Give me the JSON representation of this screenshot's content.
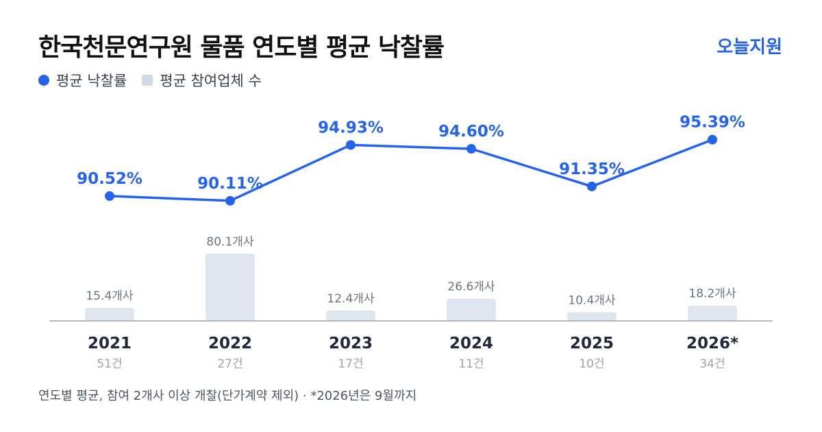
{
  "title": "한국천문연구원 물품 연도별 평균 낙찰률",
  "brand": "오늘지원",
  "legend": {
    "rate_label": "평균 낙찰률",
    "count_label": "평균 참여업체 수"
  },
  "footnote": "연도별 평균, 참여 2개사 이상 개찰(단가계약 제외) · *2026년은 9월까지",
  "colors": {
    "line": "#2563eb",
    "bar": "#dfe5ee",
    "axis": "#9ca3af",
    "bar_label": "#6b7280",
    "year": "#1f2937",
    "sub": "#9ca3af"
  },
  "chart_data": {
    "type": "bar+line",
    "categories": [
      "2021",
      "2022",
      "2023",
      "2024",
      "2025",
      "2026*"
    ],
    "notices": [
      "51건",
      "27건",
      "17건",
      "11건",
      "10건",
      "34건"
    ],
    "rate": {
      "name": "평균 낙찰률",
      "values": [
        90.52,
        90.11,
        94.93,
        94.6,
        91.35,
        95.39
      ],
      "labels": [
        "90.52%",
        "90.11%",
        "94.93%",
        "94.60%",
        "91.35%",
        "95.39%"
      ]
    },
    "bidders": {
      "name": "평균 참여업체 수",
      "values": [
        15.4,
        80.1,
        12.4,
        26.6,
        10.4,
        18.2
      ],
      "labels": [
        "15.4개사",
        "80.1개사",
        "12.4개사",
        "26.6개사",
        "10.4개사",
        "18.2개사"
      ]
    },
    "rate_range": [
      88.5,
      96.2
    ],
    "bidders_range": [
      0,
      80.1
    ]
  }
}
